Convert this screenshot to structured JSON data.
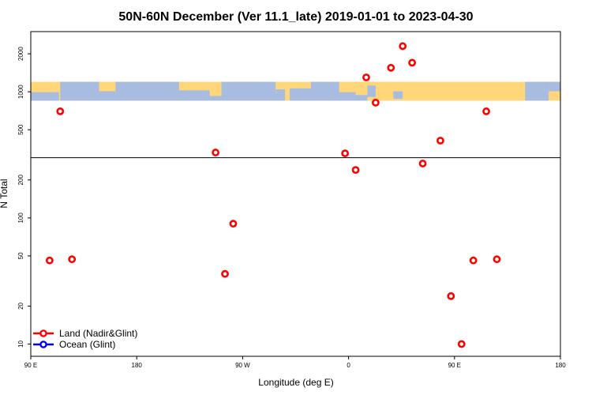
{
  "chart_data": {
    "type": "scatter",
    "title": "50N-60N December (Ver 11.1_late)   2019-01-01 to 2023-04-30",
    "xlabel": "Longitude (deg E)",
    "ylabel": "N Total",
    "y_scale": "log",
    "xlim": [
      -90,
      360
    ],
    "ylim": [
      8,
      3000
    ],
    "divider_y": 300,
    "map_strip_range": [
      850,
      1200
    ],
    "x_ticks": [
      {
        "value": -90,
        "label": "90 E"
      },
      {
        "value": 0,
        "label": "180"
      },
      {
        "value": 90,
        "label": "90 W"
      },
      {
        "value": 180,
        "label": "0"
      },
      {
        "value": 270,
        "label": "90 E"
      },
      {
        "value": 360,
        "label": "180"
      }
    ],
    "y_ticks": [
      {
        "value": 10,
        "label": "10"
      },
      {
        "value": 20,
        "label": "20"
      },
      {
        "value": 50,
        "label": "50"
      },
      {
        "value": 100,
        "label": "100"
      },
      {
        "value": 200,
        "label": "200"
      },
      {
        "value": 500,
        "label": "500"
      },
      {
        "value": 1000,
        "label": "1000"
      },
      {
        "value": 2000,
        "label": "2000"
      }
    ],
    "series": [
      {
        "name": "Land (Nadir&Glint)",
        "color": "#ff0000",
        "points": [
          {
            "x": -74,
            "y": 46
          },
          {
            "x": -55,
            "y": 47
          },
          {
            "x": -65,
            "y": 700
          },
          {
            "x": 67,
            "y": 330
          },
          {
            "x": 75,
            "y": 36
          },
          {
            "x": 82,
            "y": 90
          },
          {
            "x": 177,
            "y": 325
          },
          {
            "x": 186,
            "y": 240
          },
          {
            "x": 195,
            "y": 1300
          },
          {
            "x": 203,
            "y": 820
          },
          {
            "x": 216,
            "y": 1550
          },
          {
            "x": 226,
            "y": 2300
          },
          {
            "x": 234,
            "y": 1700
          },
          {
            "x": 243,
            "y": 270
          },
          {
            "x": 258,
            "y": 410
          },
          {
            "x": 267,
            "y": 24
          },
          {
            "x": 276,
            "y": 10
          },
          {
            "x": 286,
            "y": 46
          },
          {
            "x": 297,
            "y": 700
          },
          {
            "x": 306,
            "y": 47
          }
        ]
      },
      {
        "name": "Ocean (Glint)",
        "color": "#0000ff",
        "points": []
      }
    ],
    "legend": {
      "position": "bottom-left",
      "entries": [
        "Land (Nadir&Glint)",
        "Ocean (Glint)"
      ]
    },
    "colors": {
      "land_marker": "#ff0000",
      "ocean_marker": "#0000ff",
      "map_land": "#ffd77a",
      "map_ocean": "#a7bcdf"
    }
  }
}
